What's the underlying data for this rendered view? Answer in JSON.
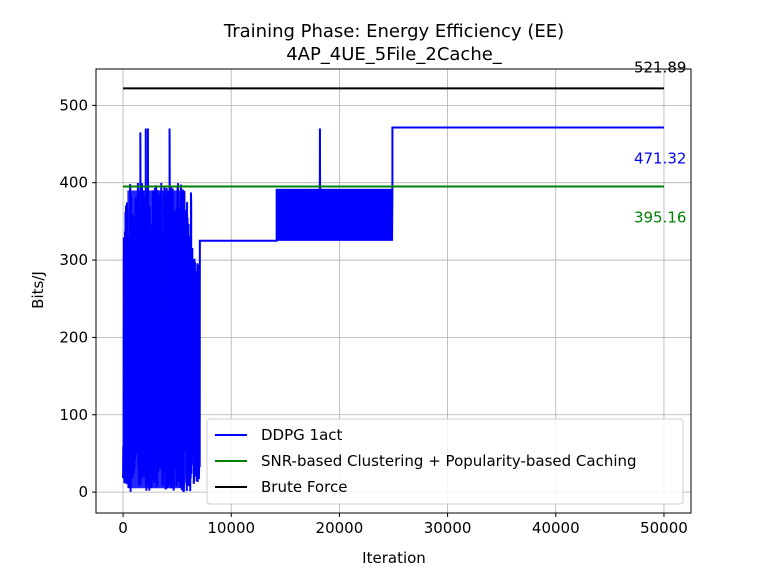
{
  "chart_data": {
    "type": "line",
    "title": "Training Phase: Energy Efficiency (EE)",
    "subtitle": "4AP_4UE_5File_2Cache_",
    "xlabel": "Iteration",
    "ylabel": "Bits/J",
    "xlim": [
      -2500,
      52500
    ],
    "ylim": [
      -27,
      547
    ],
    "xticks": [
      0,
      10000,
      20000,
      30000,
      40000,
      50000
    ],
    "yticks": [
      0,
      100,
      200,
      300,
      400,
      500
    ],
    "grid": true,
    "legend_position": "bottom-right",
    "series": [
      {
        "name": "DDPG 1act",
        "color": "#0000ff",
        "segments": [
          {
            "kind": "noisy",
            "x_start": 0,
            "x_end": 6300,
            "y_min": 0,
            "y_max": 400,
            "spikes": [
              [
                1600,
                465
              ],
              [
                2100,
                470
              ],
              [
                2300,
                470
              ],
              [
                4300,
                470
              ]
            ]
          },
          {
            "kind": "noisy",
            "x_start": 6300,
            "x_end": 7100,
            "y_min": 10,
            "y_max": 325
          },
          {
            "kind": "flat",
            "x_start": 7100,
            "x_end": 14200,
            "y": 325
          },
          {
            "kind": "band",
            "x_start": 14200,
            "x_end": 24900,
            "y_low": 325,
            "y_high": 392,
            "spikes": [
              [
                18200,
                470
              ]
            ]
          },
          {
            "kind": "flat",
            "x_start": 24900,
            "x_end": 50000,
            "y": 471.32
          }
        ]
      },
      {
        "name": "SNR-based Clustering + Popularity-based Caching",
        "color": "#008000",
        "x": [
          0,
          50000
        ],
        "y": [
          395.16,
          395.16
        ]
      },
      {
        "name": "Brute Force",
        "color": "#000000",
        "x": [
          0,
          50000
        ],
        "y": [
          521.89,
          521.89
        ]
      }
    ],
    "annotations": [
      {
        "text": "521.89",
        "x": 50000,
        "y": 521.89,
        "color": "#000000"
      },
      {
        "text": "471.32",
        "x": 50000,
        "y": 471.32,
        "color": "#0000ff"
      },
      {
        "text": "395.16",
        "x": 50000,
        "y": 395.16,
        "color": "#008000"
      }
    ]
  }
}
